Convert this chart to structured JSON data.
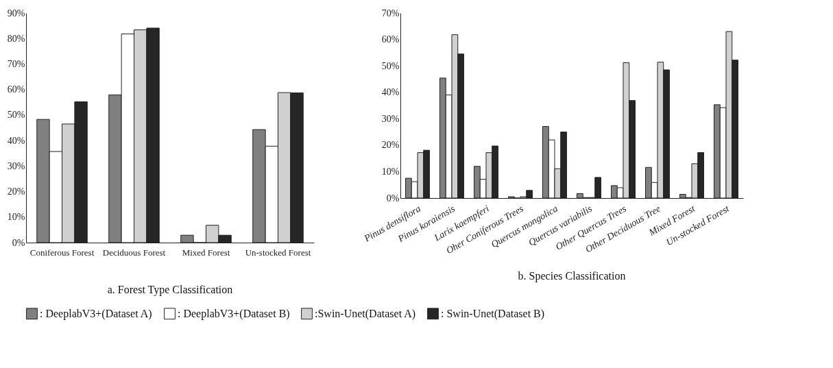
{
  "chart_data": [
    {
      "type": "bar",
      "title": "a.  Forest Type Classification",
      "categories": [
        "Coniferous Forest",
        "Deciduous Forest",
        "Mixed Forest",
        "Un-stocked Forest"
      ],
      "series": [
        {
          "name": ": DeeplabV3+(Dataset A)",
          "color": "#808080",
          "values": [
            48.3,
            57.9,
            2.9,
            44.3
          ]
        },
        {
          "name": ": DeeplabV3+(Dataset B)",
          "color": "#ffffff",
          "values": [
            35.7,
            81.8,
            0,
            37.8
          ]
        },
        {
          "name": ":Swin-Unet(Dataset A)",
          "color": "#d0d0d0",
          "values": [
            46.5,
            83.4,
            6.8,
            58.8
          ]
        },
        {
          "name": ": Swin-Unet(Dataset B)",
          "color": "#262626",
          "values": [
            55.2,
            84.1,
            2.9,
            58.7
          ]
        }
      ],
      "ylim": [
        0,
        90
      ],
      "yticks": [
        {
          "value": 0,
          "label": "0%"
        },
        {
          "value": 10,
          "label": "10%"
        },
        {
          "value": 20,
          "label": "20%"
        },
        {
          "value": 30,
          "label": "30%"
        },
        {
          "value": 40,
          "label": "40%"
        },
        {
          "value": 50,
          "label": "50%"
        },
        {
          "value": 60,
          "label": "60%"
        },
        {
          "value": 70,
          "label": "70%"
        },
        {
          "value": 80,
          "label": "80%"
        },
        {
          "value": 90,
          "label": "90%"
        }
      ],
      "grid": false,
      "legend": "bottom"
    },
    {
      "type": "bar",
      "title": "b.  Species Classification",
      "categories": [
        "Pinus densiflora",
        "Pinus koraiensis",
        "Larix kaempferi",
        "Oher Coniferous Trees",
        "Quercus mongolica",
        "Quercus variabilis",
        "Other Quercus Trees",
        "Other Deciduous Tree",
        "Mixed Forest",
        "Un-stocked Forest"
      ],
      "series": [
        {
          "color": "#808080",
          "values": [
            7.5,
            45.4,
            12.0,
            0.5,
            27.1,
            1.7,
            4.7,
            11.6,
            1.4,
            35.3
          ]
        },
        {
          "color": "#ffffff",
          "values": [
            6.2,
            39.0,
            7.1,
            0,
            22.0,
            0.2,
            3.9,
            5.9,
            0.2,
            34.2
          ]
        },
        {
          "color": "#d0d0d0",
          "values": [
            17.2,
            61.8,
            17.2,
            0.5,
            11.1,
            0.2,
            51.2,
            51.4,
            13.0,
            63.0
          ]
        },
        {
          "color": "#262626",
          "values": [
            18.1,
            54.5,
            19.7,
            2.9,
            25.0,
            7.8,
            36.9,
            48.5,
            17.2,
            52.2
          ]
        }
      ],
      "ylim": [
        0,
        70
      ],
      "yticks": [
        {
          "value": 0,
          "label": "0%"
        },
        {
          "value": 10,
          "label": "10%"
        },
        {
          "value": 20,
          "label": "20%"
        },
        {
          "value": 30,
          "label": "30%"
        },
        {
          "value": 40,
          "label": "40%"
        },
        {
          "value": 50,
          "label": "50%"
        },
        {
          "value": 60,
          "label": "60%"
        },
        {
          "value": 70,
          "label": "70%"
        }
      ],
      "grid": false
    }
  ]
}
